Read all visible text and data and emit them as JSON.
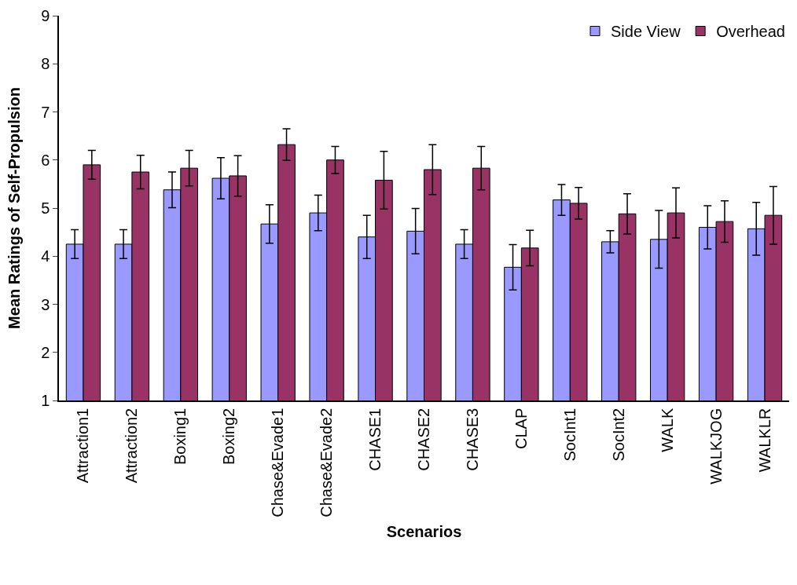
{
  "chart_data": {
    "type": "bar",
    "xlabel": "Scenarios",
    "ylabel": "Mean Ratings of Self-Propulsion",
    "categories": [
      "Attraction1",
      "Attraction2",
      "Boxing1",
      "Boxing2",
      "Chase&Evade1",
      "Chase&Evade2",
      "CHASE1",
      "CHASE2",
      "CHASE3",
      "CLAP",
      "SocInt1",
      "SocInt2",
      "WALK",
      "WALKJOG",
      "WALKLR"
    ],
    "series": [
      {
        "name": "Side View",
        "color": "#9999ff",
        "values": [
          4.25,
          4.25,
          5.38,
          5.62,
          4.67,
          4.9,
          4.4,
          4.52,
          4.25,
          3.77,
          5.17,
          4.3,
          4.35,
          4.6,
          4.57
        ],
        "errors": [
          0.3,
          0.3,
          0.37,
          0.43,
          0.4,
          0.37,
          0.45,
          0.47,
          0.3,
          0.47,
          0.32,
          0.23,
          0.6,
          0.45,
          0.55
        ]
      },
      {
        "name": "Overhead",
        "color": "#993366",
        "values": [
          5.9,
          5.75,
          5.83,
          5.67,
          6.32,
          6.0,
          5.58,
          5.8,
          5.83,
          4.17,
          5.1,
          4.88,
          4.9,
          4.72,
          4.85
        ],
        "errors": [
          0.3,
          0.35,
          0.37,
          0.42,
          0.33,
          0.28,
          0.6,
          0.52,
          0.45,
          0.37,
          0.33,
          0.42,
          0.52,
          0.43,
          0.6
        ]
      }
    ],
    "ylim": [
      1,
      9
    ],
    "yticks": [
      1,
      2,
      3,
      4,
      5,
      6,
      7,
      8,
      9
    ],
    "grid": false,
    "legend": "top right"
  }
}
